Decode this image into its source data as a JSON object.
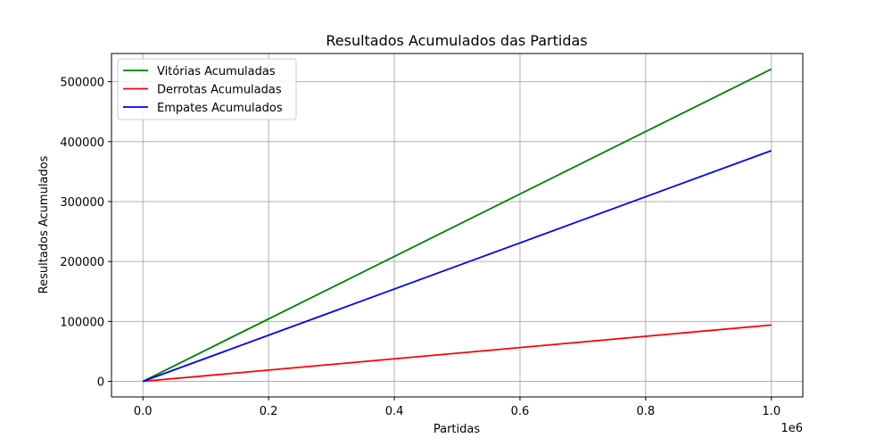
{
  "chart_data": {
    "type": "line",
    "title": "Resultados Acumulados das Partidas",
    "xlabel": "Partidas",
    "ylabel": "Resultados Acumulados",
    "x_offset_text": "1e6",
    "xlim": [
      -0.05,
      1.05
    ],
    "ylim": [
      -26000,
      547000
    ],
    "x_ticks": [
      0.0,
      0.2,
      0.4,
      0.6,
      0.8,
      1.0
    ],
    "x_tick_labels": [
      "0.0",
      "0.2",
      "0.4",
      "0.6",
      "0.8",
      "1.0"
    ],
    "y_ticks": [
      0,
      100000,
      200000,
      300000,
      400000,
      500000
    ],
    "y_tick_labels": [
      "0",
      "100000",
      "200000",
      "300000",
      "400000",
      "500000"
    ],
    "grid": true,
    "legend_position": "upper-left",
    "series": [
      {
        "name": "Vitórias Acumuladas",
        "color": "#008000",
        "x": [
          0,
          1.0
        ],
        "y": [
          0,
          521000
        ]
      },
      {
        "name": "Derrotas Acumuladas",
        "color": "#ff0000",
        "x": [
          0,
          1.0
        ],
        "y": [
          0,
          94000
        ]
      },
      {
        "name": "Empates Acumulados",
        "color": "#0000ff",
        "x": [
          0,
          1.0
        ],
        "y": [
          0,
          385000
        ]
      }
    ]
  }
}
